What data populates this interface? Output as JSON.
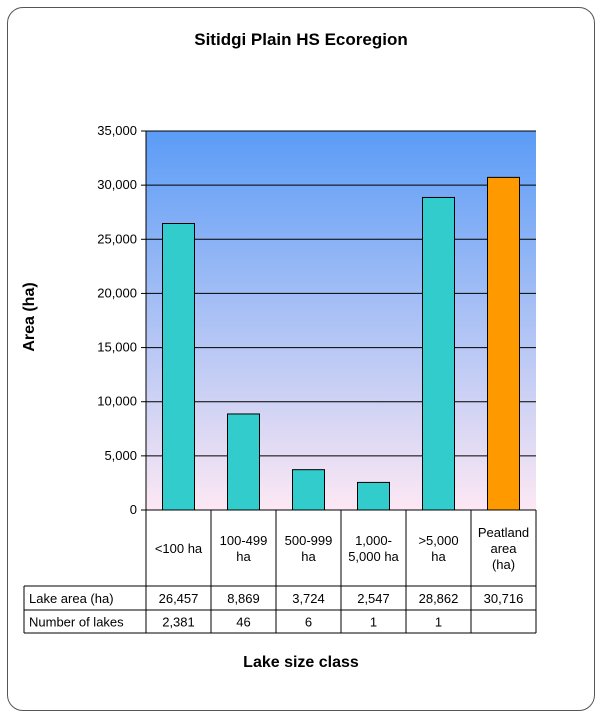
{
  "chart_data": {
    "type": "bar",
    "title": "Sitidgi Plain HS Ecoregion",
    "xlabel": "Lake size class",
    "ylabel": "Area (ha)",
    "ylim": [
      0,
      35000
    ],
    "yticks": [
      0,
      5000,
      10000,
      15000,
      20000,
      25000,
      30000,
      35000
    ],
    "ytick_labels": [
      "0",
      "5,000",
      "10,000",
      "15,000",
      "20,000",
      "25,000",
      "30,000",
      "35,000"
    ],
    "grid": true,
    "categories": [
      [
        "<100 ha"
      ],
      [
        "100-499",
        "ha"
      ],
      [
        "500-999",
        "ha"
      ],
      [
        "1,000-",
        "5,000 ha"
      ],
      [
        ">5,000",
        "ha"
      ],
      [
        "Peatland",
        "area",
        "(ha)"
      ]
    ],
    "values": [
      26457,
      8869,
      3724,
      2547,
      28862,
      30716
    ],
    "bar_colors": [
      "#33cccc",
      "#33cccc",
      "#33cccc",
      "#33cccc",
      "#33cccc",
      "#ff9900"
    ],
    "table": {
      "rows": [
        {
          "label": "Lake area (ha)",
          "cells": [
            "26,457",
            "8,869",
            "3,724",
            "2,547",
            "28,862",
            "30,716"
          ]
        },
        {
          "label": "Number of lakes",
          "cells": [
            "2,381",
            "46",
            "6",
            "1",
            "1",
            ""
          ]
        }
      ]
    }
  },
  "colors": {
    "plot_gradient_top": "#5b9cf6",
    "plot_gradient_bottom": "#fde8f4",
    "lake_bar": "#33cccc",
    "peatland_bar": "#ff9900"
  }
}
